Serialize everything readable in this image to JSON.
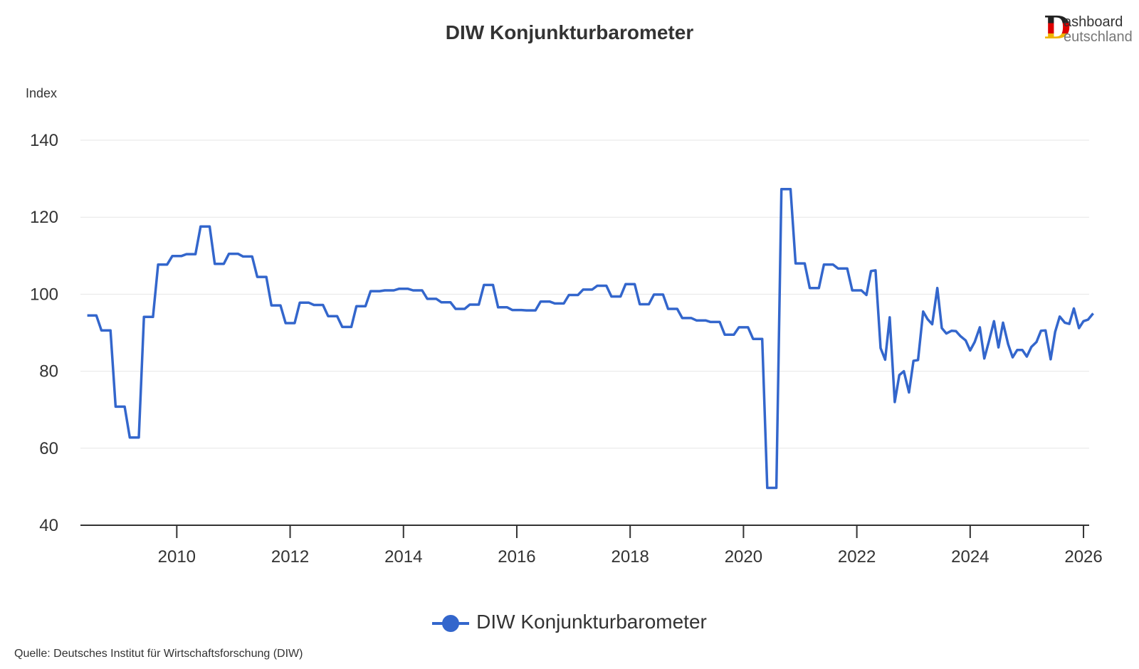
{
  "title": "DIW Konjunkturbarometer",
  "logo": {
    "letter": "D",
    "top_text": "ashboard",
    "bottom_text": "eutschland"
  },
  "legend_label": "DIW Konjunkturbarometer",
  "source": "Quelle: Deutsches Institut für Wirtschaftsforschung (DIW)",
  "colors": {
    "series": "#3366cc",
    "grid": "#e6e6e6",
    "axis": "#333333"
  },
  "chart_data": {
    "type": "line",
    "title": "DIW Konjunkturbarometer",
    "ylabel": "Index",
    "xlabel": "",
    "ylim": [
      40,
      145
    ],
    "xlim": [
      2008.3,
      2026.1
    ],
    "yticks": [
      40,
      60,
      80,
      100,
      120,
      140
    ],
    "xticks": [
      2010,
      2012,
      2014,
      2016,
      2018,
      2020,
      2022,
      2024,
      2026
    ],
    "grid": "horizontal",
    "legend": "bottom-center",
    "series": [
      {
        "name": "DIW Konjunkturbarometer",
        "points": [
          [
            2008.42,
            94.5
          ],
          [
            2008.58,
            94.5
          ],
          [
            2008.67,
            90.6
          ],
          [
            2008.83,
            90.6
          ],
          [
            2008.92,
            70.8
          ],
          [
            2009.08,
            70.8
          ],
          [
            2009.17,
            62.8
          ],
          [
            2009.33,
            62.8
          ],
          [
            2009.42,
            94.1
          ],
          [
            2009.58,
            94.1
          ],
          [
            2009.67,
            107.7
          ],
          [
            2009.83,
            107.7
          ],
          [
            2009.92,
            109.9
          ],
          [
            2010.08,
            109.9
          ],
          [
            2010.17,
            110.4
          ],
          [
            2010.33,
            110.4
          ],
          [
            2010.42,
            117.6
          ],
          [
            2010.58,
            117.6
          ],
          [
            2010.67,
            107.9
          ],
          [
            2010.83,
            107.9
          ],
          [
            2010.92,
            110.5
          ],
          [
            2011.08,
            110.5
          ],
          [
            2011.17,
            109.8
          ],
          [
            2011.33,
            109.8
          ],
          [
            2011.42,
            104.5
          ],
          [
            2011.58,
            104.5
          ],
          [
            2011.67,
            97.1
          ],
          [
            2011.83,
            97.1
          ],
          [
            2011.92,
            92.5
          ],
          [
            2012.08,
            92.5
          ],
          [
            2012.17,
            97.8
          ],
          [
            2012.33,
            97.8
          ],
          [
            2012.42,
            97.2
          ],
          [
            2012.58,
            97.2
          ],
          [
            2012.67,
            94.3
          ],
          [
            2012.83,
            94.3
          ],
          [
            2012.92,
            91.5
          ],
          [
            2013.08,
            91.5
          ],
          [
            2013.17,
            96.9
          ],
          [
            2013.33,
            96.9
          ],
          [
            2013.42,
            100.8
          ],
          [
            2013.58,
            100.8
          ],
          [
            2013.67,
            101.0
          ],
          [
            2013.83,
            101.0
          ],
          [
            2013.92,
            101.4
          ],
          [
            2014.08,
            101.4
          ],
          [
            2014.17,
            101.0
          ],
          [
            2014.33,
            101.0
          ],
          [
            2014.42,
            98.8
          ],
          [
            2014.58,
            98.8
          ],
          [
            2014.67,
            97.9
          ],
          [
            2014.83,
            97.9
          ],
          [
            2014.92,
            96.2
          ],
          [
            2015.08,
            96.2
          ],
          [
            2015.17,
            97.3
          ],
          [
            2015.33,
            97.3
          ],
          [
            2015.42,
            102.4
          ],
          [
            2015.58,
            102.4
          ],
          [
            2015.67,
            96.6
          ],
          [
            2015.83,
            96.6
          ],
          [
            2015.92,
            95.9
          ],
          [
            2016.08,
            95.9
          ],
          [
            2016.17,
            95.8
          ],
          [
            2016.33,
            95.8
          ],
          [
            2016.42,
            98.1
          ],
          [
            2016.58,
            98.1
          ],
          [
            2016.67,
            97.6
          ],
          [
            2016.83,
            97.6
          ],
          [
            2016.92,
            99.8
          ],
          [
            2017.08,
            99.8
          ],
          [
            2017.17,
            101.2
          ],
          [
            2017.33,
            101.2
          ],
          [
            2017.42,
            102.2
          ],
          [
            2017.58,
            102.2
          ],
          [
            2017.67,
            99.4
          ],
          [
            2017.83,
            99.4
          ],
          [
            2017.92,
            102.6
          ],
          [
            2018.08,
            102.6
          ],
          [
            2018.17,
            97.4
          ],
          [
            2018.33,
            97.4
          ],
          [
            2018.42,
            99.9
          ],
          [
            2018.58,
            99.9
          ],
          [
            2018.67,
            96.2
          ],
          [
            2018.83,
            96.2
          ],
          [
            2018.92,
            93.8
          ],
          [
            2019.08,
            93.8
          ],
          [
            2019.17,
            93.2
          ],
          [
            2019.33,
            93.2
          ],
          [
            2019.42,
            92.8
          ],
          [
            2019.58,
            92.8
          ],
          [
            2019.67,
            89.5
          ],
          [
            2019.83,
            89.5
          ],
          [
            2019.92,
            91.4
          ],
          [
            2020.08,
            91.4
          ],
          [
            2020.17,
            88.4
          ],
          [
            2020.33,
            88.4
          ],
          [
            2020.42,
            49.7
          ],
          [
            2020.58,
            49.7
          ],
          [
            2020.67,
            127.3
          ],
          [
            2020.83,
            127.3
          ],
          [
            2020.92,
            108.0
          ],
          [
            2021.08,
            108.0
          ],
          [
            2021.17,
            101.6
          ],
          [
            2021.33,
            101.6
          ],
          [
            2021.42,
            107.7
          ],
          [
            2021.58,
            107.7
          ],
          [
            2021.67,
            106.7
          ],
          [
            2021.83,
            106.7
          ],
          [
            2021.92,
            101.0
          ],
          [
            2022.08,
            101.0
          ],
          [
            2022.17,
            99.8
          ],
          [
            2022.25,
            106.0
          ],
          [
            2022.33,
            106.2
          ],
          [
            2022.42,
            86.0
          ],
          [
            2022.5,
            83.0
          ],
          [
            2022.58,
            94.0
          ],
          [
            2022.67,
            72.0
          ],
          [
            2022.75,
            79.0
          ],
          [
            2022.83,
            80.0
          ],
          [
            2022.92,
            74.5
          ],
          [
            2023.0,
            82.7
          ],
          [
            2023.08,
            82.9
          ],
          [
            2023.17,
            95.5
          ],
          [
            2023.25,
            93.5
          ],
          [
            2023.33,
            92.2
          ],
          [
            2023.42,
            101.6
          ],
          [
            2023.5,
            91.2
          ],
          [
            2023.58,
            89.8
          ],
          [
            2023.67,
            90.5
          ],
          [
            2023.75,
            90.4
          ],
          [
            2023.83,
            89.1
          ],
          [
            2023.92,
            88.0
          ],
          [
            2024.0,
            85.4
          ],
          [
            2024.08,
            87.6
          ],
          [
            2024.17,
            91.4
          ],
          [
            2024.25,
            83.3
          ],
          [
            2024.33,
            87.7
          ],
          [
            2024.42,
            93.0
          ],
          [
            2024.5,
            86.2
          ],
          [
            2024.58,
            92.6
          ],
          [
            2024.67,
            87.0
          ],
          [
            2024.75,
            83.6
          ],
          [
            2024.83,
            85.5
          ],
          [
            2024.92,
            85.5
          ],
          [
            2025.0,
            83.8
          ],
          [
            2025.08,
            86.3
          ],
          [
            2025.17,
            87.6
          ],
          [
            2025.25,
            90.5
          ],
          [
            2025.33,
            90.6
          ],
          [
            2025.42,
            83.1
          ],
          [
            2025.5,
            90.2
          ],
          [
            2025.58,
            94.2
          ],
          [
            2025.67,
            92.6
          ],
          [
            2025.75,
            92.3
          ],
          [
            2025.83,
            96.3
          ],
          [
            2025.92,
            91.2
          ],
          [
            2026.0,
            93.0
          ],
          [
            2026.08,
            93.4
          ],
          [
            2026.17,
            95.0
          ]
        ]
      }
    ]
  }
}
